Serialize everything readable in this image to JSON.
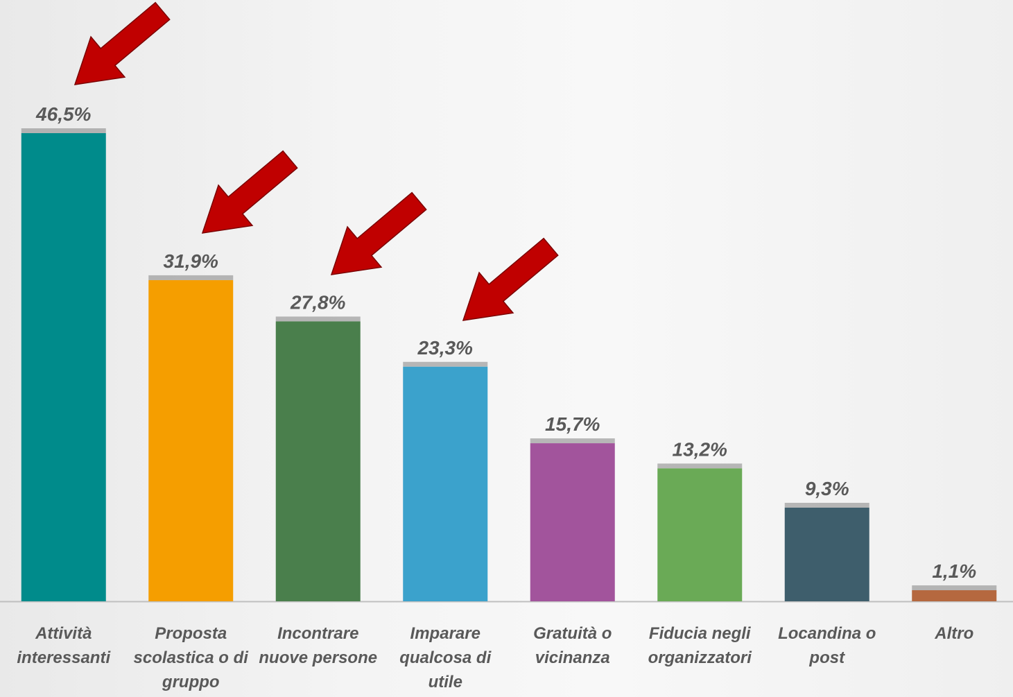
{
  "chart_data": {
    "type": "bar",
    "categories": [
      "Attività interessanti",
      "Proposta scolastica o di gruppo",
      "Incontrare nuove persone",
      "Imparare qualcosa di utile",
      "Gratuità o vicinanza",
      "Fiducia negli organizzatori",
      "Locandina o post",
      "Altro"
    ],
    "values": [
      46.5,
      31.9,
      27.8,
      23.3,
      15.7,
      13.2,
      9.3,
      1.1
    ],
    "value_labels": [
      "46,5%",
      "31,9%",
      "27,8%",
      "23,3%",
      "15,7%",
      "13,2%",
      "9,3%",
      "1,1%"
    ],
    "colors": [
      "#008b8b",
      "#f59e00",
      "#4a7f4c",
      "#3ba2cc",
      "#a2549c",
      "#6aaa56",
      "#3e5e6c",
      "#b5683f"
    ]
  }
}
